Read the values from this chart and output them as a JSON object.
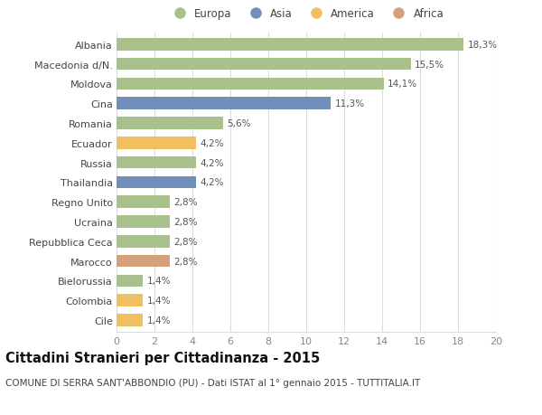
{
  "categories": [
    "Albania",
    "Macedonia d/N.",
    "Moldova",
    "Cina",
    "Romania",
    "Ecuador",
    "Russia",
    "Thailandia",
    "Regno Unito",
    "Ucraina",
    "Repubblica Ceca",
    "Marocco",
    "Bielorussia",
    "Colombia",
    "Cile"
  ],
  "values": [
    18.3,
    15.5,
    14.1,
    11.3,
    5.6,
    4.2,
    4.2,
    4.2,
    2.8,
    2.8,
    2.8,
    2.8,
    1.4,
    1.4,
    1.4
  ],
  "labels": [
    "18,3%",
    "15,5%",
    "14,1%",
    "11,3%",
    "5,6%",
    "4,2%",
    "4,2%",
    "4,2%",
    "2,8%",
    "2,8%",
    "2,8%",
    "2,8%",
    "1,4%",
    "1,4%",
    "1,4%"
  ],
  "continents": [
    "Europa",
    "Europa",
    "Europa",
    "Asia",
    "Europa",
    "America",
    "Europa",
    "Asia",
    "Europa",
    "Europa",
    "Europa",
    "Africa",
    "Europa",
    "America",
    "America"
  ],
  "continent_colors": {
    "Europa": "#a8c08a",
    "Asia": "#7090bb",
    "America": "#f0c060",
    "Africa": "#d4a07a"
  },
  "legend_order": [
    "Europa",
    "Asia",
    "America",
    "Africa"
  ],
  "xlim": [
    0,
    20
  ],
  "xticks": [
    0,
    2,
    4,
    6,
    8,
    10,
    12,
    14,
    16,
    18,
    20
  ],
  "title": "Cittadini Stranieri per Cittadinanza - 2015",
  "subtitle": "COMUNE DI SERRA SANT'ABBONDIO (PU) - Dati ISTAT al 1° gennaio 2015 - TUTTITALIA.IT",
  "bg_color": "#ffffff",
  "grid_color": "#dddddd",
  "bar_height": 0.62,
  "title_fontsize": 10.5,
  "subtitle_fontsize": 7.5,
  "label_fontsize": 8,
  "tick_fontsize": 8,
  "value_fontsize": 7.5,
  "legend_fontsize": 8.5
}
